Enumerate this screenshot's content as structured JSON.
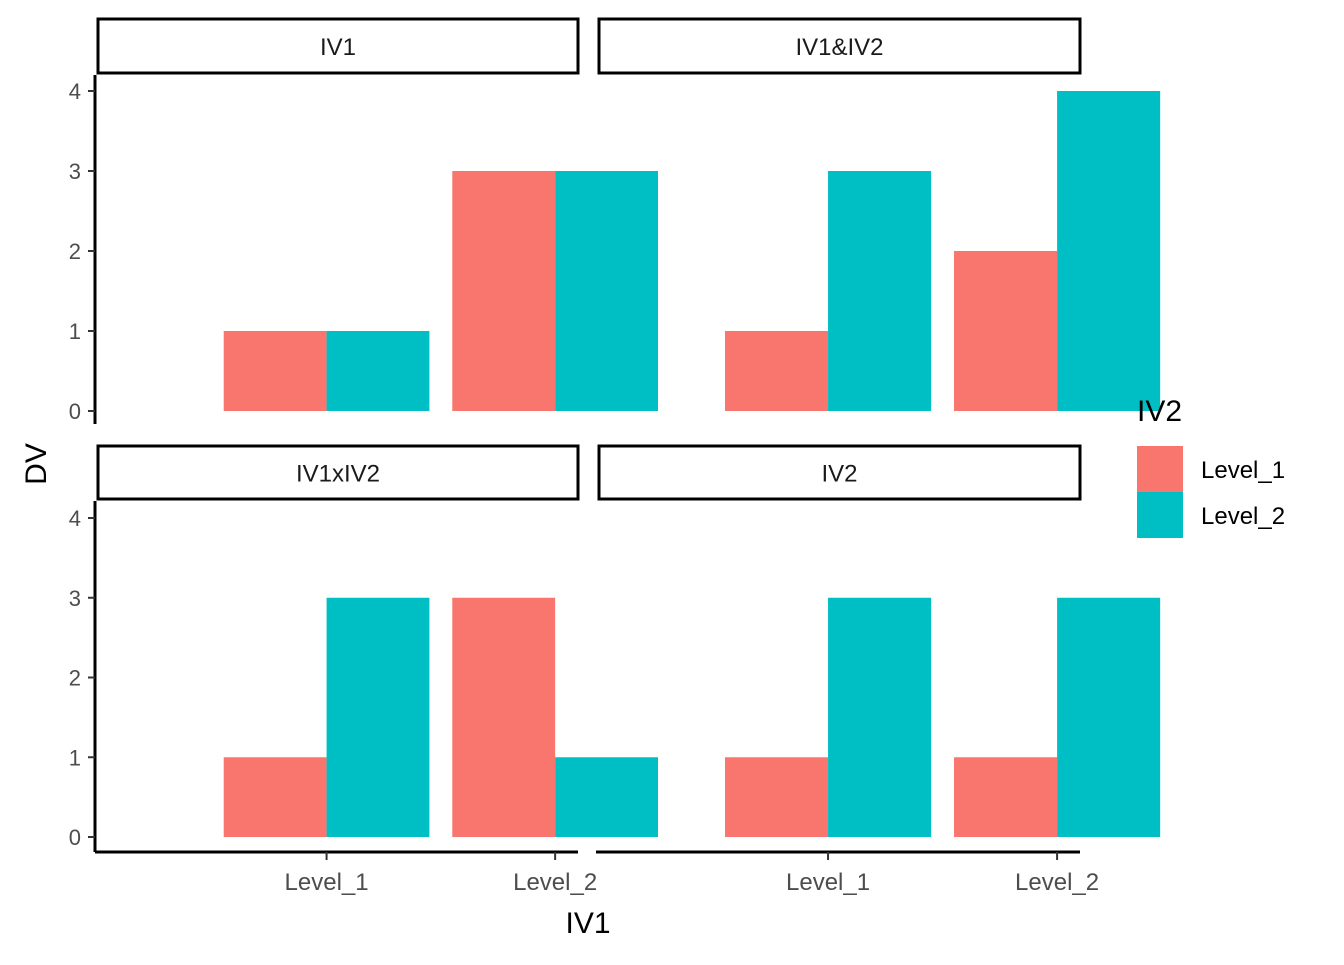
{
  "chart_data": {
    "type": "bar",
    "facets": [
      "IV1",
      "IV1&IV2",
      "IV1xIV2",
      "IV2"
    ],
    "categories": [
      "Level_1",
      "Level_2"
    ],
    "x_ticks": [
      "Level_1",
      "Level_2"
    ],
    "xlabel": "IV1",
    "ylabel": "DV",
    "ylim": [
      0,
      4
    ],
    "y_ticks": [
      "0",
      "1",
      "2",
      "3",
      "4"
    ],
    "legend": {
      "title": "IV2",
      "position": "right",
      "entries": [
        "Level_1",
        "Level_2"
      ]
    },
    "colors": {
      "Level_1": "#F8766D",
      "Level_2": "#00BFC4"
    },
    "panels": [
      {
        "facet": "IV1",
        "series": [
          {
            "name": "Level_1",
            "values": [
              1,
              3
            ]
          },
          {
            "name": "Level_2",
            "values": [
              1,
              3
            ]
          }
        ]
      },
      {
        "facet": "IV1&IV2",
        "series": [
          {
            "name": "Level_1",
            "values": [
              1,
              2
            ]
          },
          {
            "name": "Level_2",
            "values": [
              3,
              4
            ]
          }
        ]
      },
      {
        "facet": "IV1xIV2",
        "series": [
          {
            "name": "Level_1",
            "values": [
              1,
              3
            ]
          },
          {
            "name": "Level_2",
            "values": [
              3,
              1
            ]
          }
        ]
      },
      {
        "facet": "IV2",
        "series": [
          {
            "name": "Level_1",
            "values": [
              1,
              1
            ]
          },
          {
            "name": "Level_2",
            "values": [
              3,
              3
            ]
          }
        ]
      }
    ]
  }
}
